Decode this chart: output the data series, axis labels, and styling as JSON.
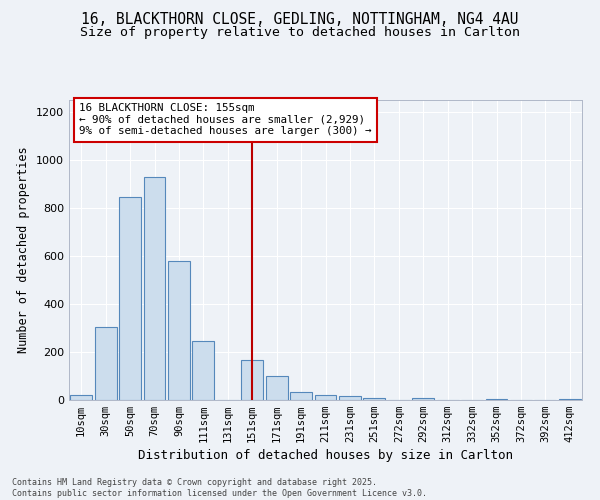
{
  "title_line1": "16, BLACKTHORN CLOSE, GEDLING, NOTTINGHAM, NG4 4AU",
  "title_line2": "Size of property relative to detached houses in Carlton",
  "xlabel": "Distribution of detached houses by size in Carlton",
  "ylabel": "Number of detached properties",
  "bar_color": "#ccdded",
  "bar_edge_color": "#5588bb",
  "background_color": "#eef2f7",
  "grid_color": "#ffffff",
  "categories": [
    "10sqm",
    "30sqm",
    "50sqm",
    "70sqm",
    "90sqm",
    "111sqm",
    "131sqm",
    "151sqm",
    "171sqm",
    "191sqm",
    "211sqm",
    "231sqm",
    "251sqm",
    "272sqm",
    "292sqm",
    "312sqm",
    "332sqm",
    "352sqm",
    "372sqm",
    "392sqm",
    "412sqm"
  ],
  "values": [
    20,
    305,
    845,
    930,
    580,
    245,
    0,
    165,
    100,
    35,
    20,
    15,
    10,
    0,
    10,
    0,
    0,
    5,
    0,
    0,
    5
  ],
  "vline_index": 7.5,
  "vline_color": "#bb0000",
  "annotation_text": "16 BLACKTHORN CLOSE: 155sqm\n← 90% of detached houses are smaller (2,929)\n9% of semi-detached houses are larger (300) →",
  "ylim": [
    0,
    1250
  ],
  "yticks": [
    0,
    200,
    400,
    600,
    800,
    1000,
    1200
  ],
  "footer_text": "Contains HM Land Registry data © Crown copyright and database right 2025.\nContains public sector information licensed under the Open Government Licence v3.0.",
  "title_fontsize": 10.5,
  "subtitle_fontsize": 9.5,
  "ylabel_fontsize": 8.5,
  "xlabel_fontsize": 9,
  "tick_fontsize": 7.5
}
